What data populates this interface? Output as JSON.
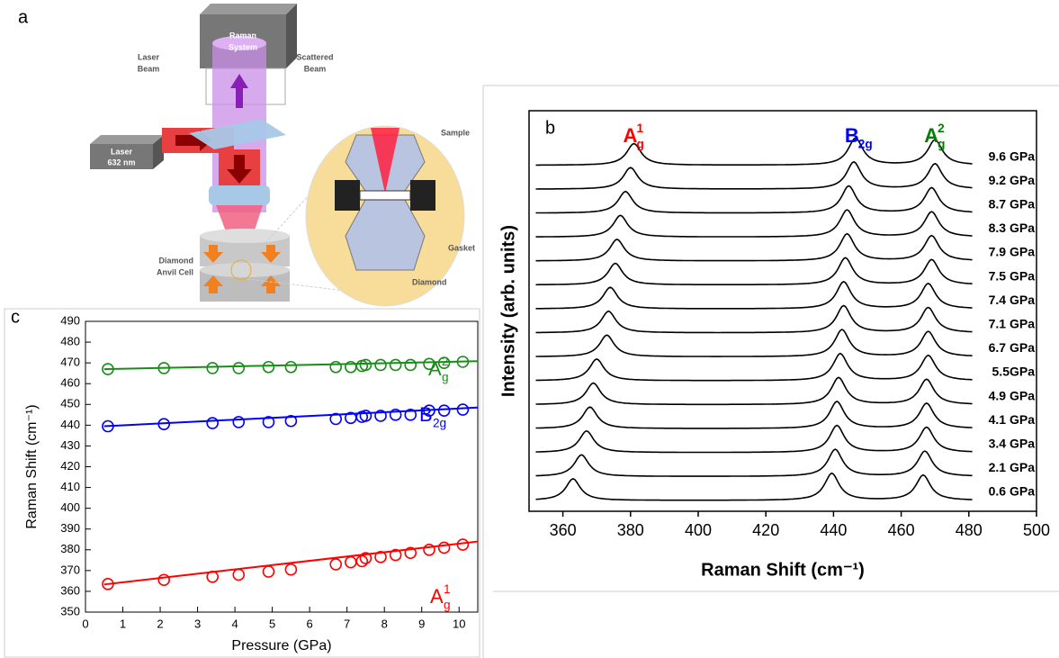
{
  "panel_labels": [
    "a",
    "b",
    "c"
  ],
  "diagram": {
    "raman_system": [
      "Raman",
      "System"
    ],
    "laser": [
      "Laser",
      "632 nm"
    ],
    "laser_beam": [
      "Laser",
      "Beam"
    ],
    "scattered_beam": [
      "Scattered",
      "Beam"
    ],
    "sample": "Sample",
    "gasket": "Gasket",
    "diamond": "Diamond",
    "dac": [
      "Diamond",
      "Anvil Cell"
    ]
  },
  "chart_data": [
    {
      "type": "line",
      "xlabel": "Raman Shift (cm⁻¹)",
      "ylabel": "Intensity (arb. units)",
      "xlim": [
        350,
        500
      ],
      "xticks": [
        360,
        380,
        400,
        420,
        440,
        460,
        480,
        500
      ],
      "peaks": [
        {
          "name": "A",
          "sub": "g",
          "sup": "1",
          "color": "#ff0000"
        },
        {
          "name": "B",
          "sub": "2g",
          "color": "#0000ff"
        },
        {
          "name": "A",
          "sub": "g",
          "sup": "2",
          "color": "#008000"
        }
      ],
      "series": [
        {
          "name": "0.6 GPa",
          "values": [
            363,
            439.5,
            466.5
          ]
        },
        {
          "name": "2.1 GPa",
          "values": [
            365.5,
            440.5,
            467
          ]
        },
        {
          "name": "3.4 GPa",
          "values": [
            367,
            441,
            467.5
          ]
        },
        {
          "name": "4.1 GPa",
          "values": [
            368,
            441,
            467.5
          ]
        },
        {
          "name": "4.9 GPa",
          "values": [
            369,
            441.5,
            467.5
          ]
        },
        {
          "name": "5.5GPa",
          "values": [
            370,
            442,
            468
          ]
        },
        {
          "name": "6.7 GPa",
          "values": [
            373,
            442.5,
            468
          ]
        },
        {
          "name": "7.1 GPa",
          "values": [
            373.5,
            443,
            468
          ]
        },
        {
          "name": "7.4 GPa",
          "values": [
            374,
            443,
            468
          ]
        },
        {
          "name": "7.5 GPa",
          "values": [
            375.5,
            443.5,
            469
          ]
        },
        {
          "name": "7.9 GPa",
          "values": [
            376,
            444,
            469
          ]
        },
        {
          "name": "8.3 GPa",
          "values": [
            377,
            444,
            469
          ]
        },
        {
          "name": "8.7 GPa",
          "values": [
            378.5,
            444.5,
            469
          ]
        },
        {
          "name": "9.2 GPa",
          "values": [
            380,
            446,
            470
          ]
        },
        {
          "name": "9.6 GPa",
          "values": [
            381,
            446.5,
            470
          ]
        }
      ]
    },
    {
      "type": "scatter",
      "xlabel": "Pressure (GPa)",
      "ylabel": "Raman Shift (cm⁻¹)",
      "xlim": [
        0,
        10.5
      ],
      "xticks": [
        0,
        1,
        2,
        3,
        4,
        5,
        6,
        7,
        8,
        9,
        10
      ],
      "ylim": [
        350,
        490
      ],
      "yticks": [
        350,
        360,
        370,
        380,
        390,
        400,
        410,
        420,
        430,
        440,
        450,
        460,
        470,
        480,
        490
      ],
      "x": [
        0.6,
        2.1,
        3.4,
        4.1,
        4.9,
        5.5,
        6.7,
        7.1,
        7.4,
        7.5,
        7.9,
        8.3,
        8.7,
        9.2,
        9.6,
        10.1
      ],
      "series": [
        {
          "name": "A",
          "sub": "g",
          "sup": "1",
          "color": "#ff0000",
          "values": [
            363.5,
            365.5,
            367,
            368,
            369.5,
            370.5,
            373,
            374,
            374.5,
            376,
            376.5,
            377.5,
            378.5,
            380,
            381,
            382.5
          ],
          "fit_x": [
            0.5,
            10.5
          ],
          "fit_values": [
            363.3,
            384
          ]
        },
        {
          "name": "B",
          "sub": "2g",
          "color": "#0000ff",
          "values": [
            439.5,
            440.5,
            441,
            441.5,
            441.5,
            442,
            443,
            443.5,
            444,
            444.5,
            444.5,
            445,
            445,
            447,
            447,
            447.5
          ],
          "fit_x": [
            0.5,
            10.5
          ],
          "fit_values": [
            439.5,
            448.5
          ]
        },
        {
          "name": "A",
          "sub": "g",
          "sup": "2",
          "color": "#1a8c1a",
          "values": [
            467,
            467.5,
            467.5,
            467.5,
            468,
            468,
            468,
            468,
            468.5,
            469,
            469,
            469,
            469,
            469.5,
            470,
            470.5
          ],
          "fit_x": [
            0.5,
            10.5
          ],
          "fit_values": [
            467,
            470.8
          ]
        }
      ]
    }
  ]
}
